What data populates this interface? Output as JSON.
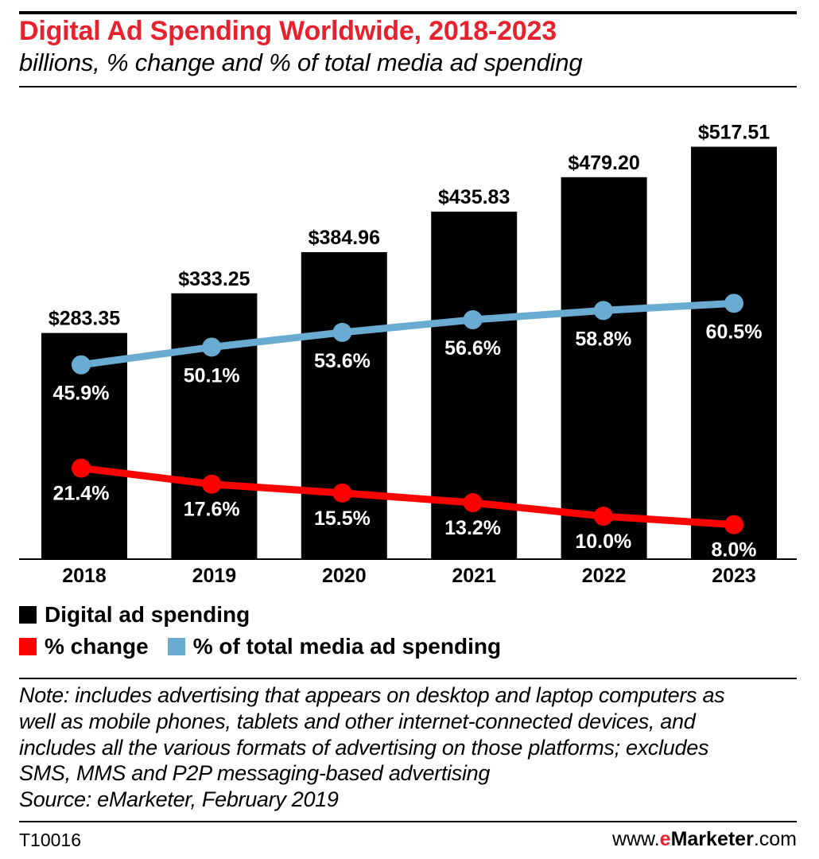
{
  "title": "Digital Ad Spending Worldwide, 2018-2023",
  "subtitle": "billions, % change and % of total media ad spending",
  "chart_data": {
    "type": "bar",
    "categories": [
      "2018",
      "2019",
      "2020",
      "2021",
      "2022",
      "2023"
    ],
    "series": [
      {
        "name": "Digital ad spending",
        "type": "bar",
        "color": "#000000",
        "values": [
          283.35,
          333.25,
          384.96,
          435.83,
          479.2,
          517.51
        ],
        "labels": [
          "$283.35",
          "$333.25",
          "$384.96",
          "$435.83",
          "$479.20",
          "$517.51"
        ]
      },
      {
        "name": "% change",
        "type": "line",
        "color": "#ff0000",
        "values": [
          21.4,
          17.6,
          15.5,
          13.2,
          10.0,
          8.0
        ],
        "labels": [
          "21.4%",
          "17.6%",
          "15.5%",
          "13.2%",
          "10.0%",
          "8.0%"
        ]
      },
      {
        "name": "% of total media ad spending",
        "type": "line",
        "color": "#6aabd2",
        "values": [
          45.9,
          50.1,
          53.6,
          56.6,
          58.8,
          60.5
        ],
        "labels": [
          "45.9%",
          "50.1%",
          "53.6%",
          "56.6%",
          "58.8%",
          "60.5%"
        ]
      }
    ],
    "grid": false,
    "legend_position": "bottom"
  },
  "legend": {
    "items": [
      {
        "label": "Digital ad spending",
        "color": "#000000"
      },
      {
        "label": "% change",
        "color": "#ff0000"
      },
      {
        "label": "% of total media ad spending",
        "color": "#6aabd2"
      }
    ]
  },
  "note": {
    "lines": [
      "Note: includes advertising that appears on desktop and laptop computers as",
      "well as mobile phones, tablets and other internet-connected devices, and",
      "includes all the various formats of advertising on those platforms; excludes",
      "SMS, MMS and P2P messaging-based advertising",
      "Source: eMarketer, February 2019"
    ]
  },
  "footer": {
    "chart_id": "T10016",
    "site_prefix": "www.",
    "site_brand_e": "e",
    "site_brand_rest": "Marketer",
    "site_suffix": ".com"
  }
}
